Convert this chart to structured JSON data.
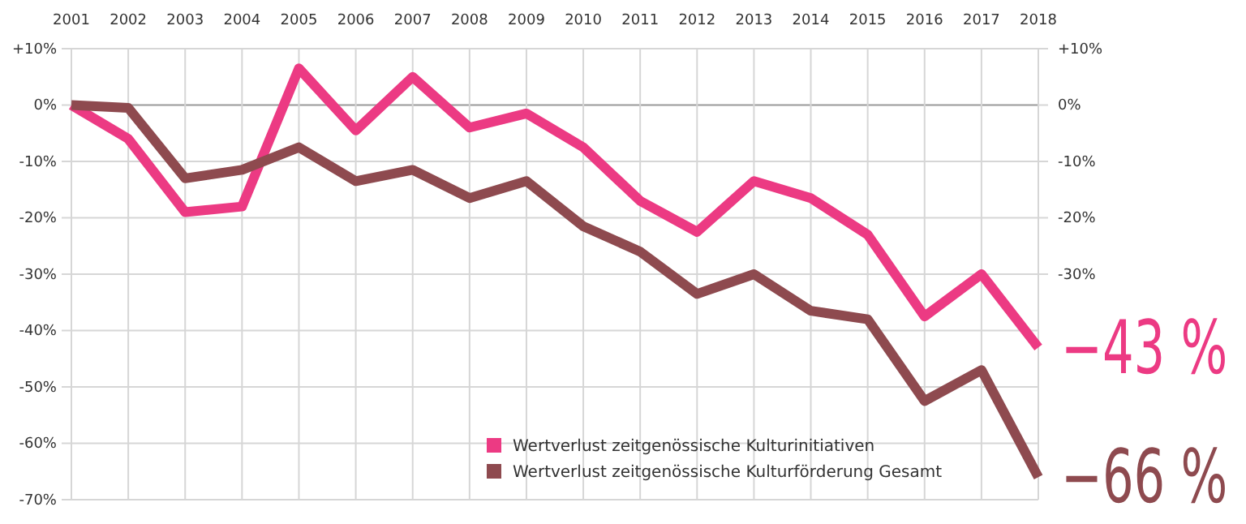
{
  "chart_data": {
    "type": "line",
    "categories": [
      "2001",
      "2002",
      "2003",
      "2004",
      "2005",
      "2006",
      "2007",
      "2008",
      "2009",
      "2010",
      "2011",
      "2012",
      "2013",
      "2014",
      "2015",
      "2016",
      "2017",
      "2018"
    ],
    "series": [
      {
        "name": "Wertverlust zeitgenössische Kulturinitiativen",
        "color": "#ec3a83",
        "values": [
          0,
          -6,
          -19,
          -18,
          6.5,
          -4.5,
          5,
          -4,
          -1.5,
          -7.5,
          -17,
          -22.5,
          -13.5,
          -16.5,
          -23,
          -37.5,
          -30,
          -43
        ]
      },
      {
        "name": "Wertverlust zeitgenössische Kulturförderung Gesamt",
        "color": "#8e4a4f",
        "values": [
          0,
          -0.5,
          -13,
          -11.5,
          -7.5,
          -13.5,
          -11.5,
          -16.5,
          -13.5,
          -21.5,
          -26,
          -33.5,
          -30,
          -36.5,
          -38,
          -52.5,
          -47,
          -66
        ]
      }
    ],
    "ylim": [
      -70,
      10
    ],
    "yticks": [
      {
        "value": 10,
        "label": "+10%"
      },
      {
        "value": 0,
        "label": "0%"
      },
      {
        "value": -10,
        "label": "-10%"
      },
      {
        "value": -20,
        "label": "-20%"
      },
      {
        "value": -30,
        "label": "-30%"
      },
      {
        "value": -40,
        "label": "-40%"
      },
      {
        "value": -50,
        "label": "-50%"
      },
      {
        "value": -60,
        "label": "-60%"
      },
      {
        "value": -70,
        "label": "-70%"
      }
    ],
    "y2lim": [
      -70,
      10
    ],
    "y2ticks": [
      {
        "value": 10,
        "label": "+10%"
      },
      {
        "value": 0,
        "label": "0%"
      },
      {
        "value": -10,
        "label": "-10%"
      },
      {
        "value": -20,
        "label": "-20%"
      },
      {
        "value": -30,
        "label": "-30%"
      }
    ],
    "annotations": [
      {
        "text": "−43 %",
        "x": "2018",
        "y": -43
      },
      {
        "text": "−66 %",
        "x": "2018",
        "y": -66
      }
    ],
    "grid": true,
    "legend": "bottom right",
    "marker": "none",
    "line_style": "solid"
  }
}
